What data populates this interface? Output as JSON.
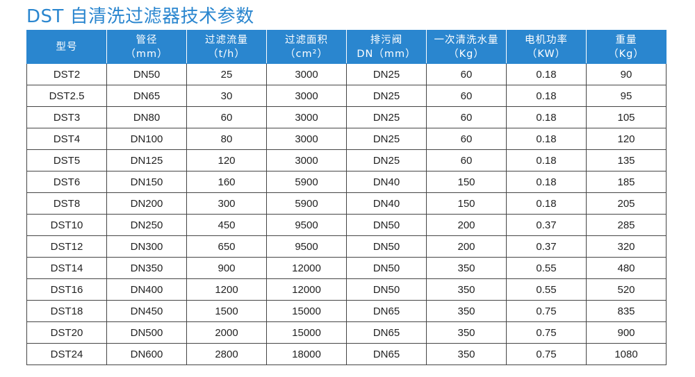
{
  "title": "DST 自清洗过滤器技术参数",
  "table": {
    "headers": [
      {
        "line1": "型号",
        "line2": ""
      },
      {
        "line1": "管径",
        "line2": "（mm）"
      },
      {
        "line1": "过滤流量",
        "line2": "（t/h）"
      },
      {
        "line1": "过滤面积",
        "line2": "（cm²）"
      },
      {
        "line1": "排污阀",
        "line2": "DN（mm）"
      },
      {
        "line1": "一次清洗水量",
        "line2": "（Kg）"
      },
      {
        "line1": "电机功率",
        "line2": "（KW）"
      },
      {
        "line1": "重量",
        "line2": "（Kg）"
      }
    ],
    "rows": [
      [
        "DST2",
        "DN50",
        "25",
        "3000",
        "DN25",
        "60",
        "0.18",
        "90"
      ],
      [
        "DST2.5",
        "DN65",
        "30",
        "3000",
        "DN25",
        "60",
        "0.18",
        "95"
      ],
      [
        "DST3",
        "DN80",
        "60",
        "3000",
        "DN25",
        "60",
        "0.18",
        "105"
      ],
      [
        "DST4",
        "DN100",
        "80",
        "3000",
        "DN25",
        "60",
        "0.18",
        "120"
      ],
      [
        "DST5",
        "DN125",
        "120",
        "3000",
        "DN25",
        "60",
        "0.18",
        "135"
      ],
      [
        "DST6",
        "DN150",
        "160",
        "5900",
        "DN40",
        "150",
        "0.18",
        "185"
      ],
      [
        "DST8",
        "DN200",
        "300",
        "5900",
        "DN40",
        "150",
        "0.18",
        "205"
      ],
      [
        "DST10",
        "DN250",
        "450",
        "9500",
        "DN50",
        "200",
        "0.37",
        "285"
      ],
      [
        "DST12",
        "DN300",
        "650",
        "9500",
        "DN50",
        "200",
        "0.37",
        "320"
      ],
      [
        "DST14",
        "DN350",
        "900",
        "12000",
        "DN50",
        "350",
        "0.55",
        "480"
      ],
      [
        "DST16",
        "DN400",
        "1200",
        "12000",
        "DN50",
        "350",
        "0.55",
        "520"
      ],
      [
        "DST18",
        "DN450",
        "1500",
        "15000",
        "DN65",
        "350",
        "0.75",
        "835"
      ],
      [
        "DST20",
        "DN500",
        "2000",
        "15000",
        "DN65",
        "350",
        "0.75",
        "900"
      ],
      [
        "DST24",
        "DN600",
        "2800",
        "18000",
        "DN65",
        "350",
        "0.75",
        "1080"
      ]
    ]
  }
}
